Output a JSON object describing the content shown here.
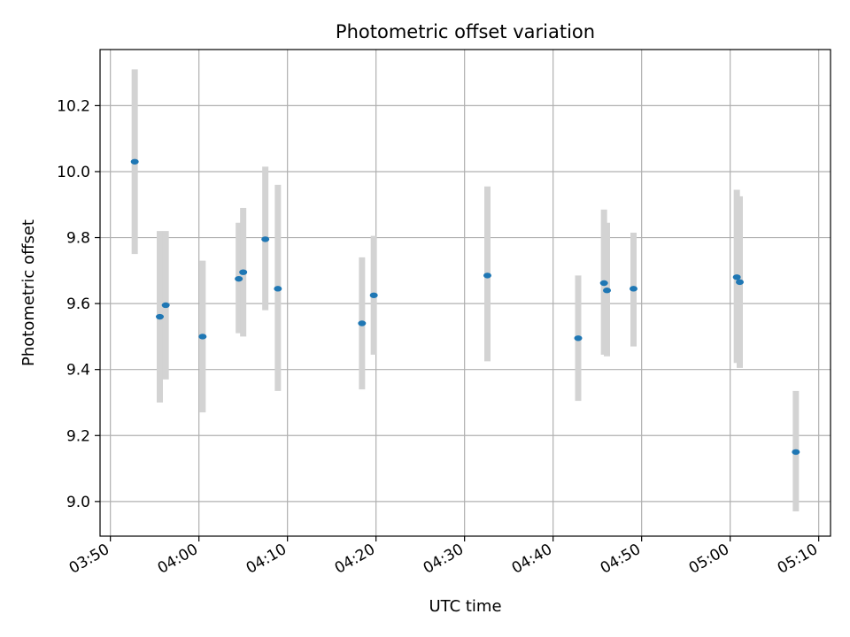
{
  "chart_data": {
    "type": "scatter",
    "title": "Photometric offset variation",
    "xlabel": "UTC time",
    "ylabel": "Photometric offset",
    "x_ticks": [
      "03:50",
      "04:00",
      "04:10",
      "04:20",
      "04:30",
      "04:40",
      "04:50",
      "05:00",
      "05:10"
    ],
    "y_ticks": [
      "9.0",
      "9.2",
      "9.4",
      "9.6",
      "9.8",
      "10.0",
      "10.2"
    ],
    "xlim": [
      "03:48:50",
      "05:11:20"
    ],
    "ylim": [
      8.895,
      10.37
    ],
    "grid": true,
    "colors": {
      "points": "#1f77b4",
      "errorbars": "#d3d3d3",
      "grid": "#b0b0b0"
    },
    "series": [
      {
        "points": [
          {
            "x": "03:52:45",
            "y": 10.03,
            "err_low": 9.75,
            "err_high": 10.31
          },
          {
            "x": "03:55:35",
            "y": 9.56,
            "err_low": 9.3,
            "err_high": 9.82
          },
          {
            "x": "03:56:15",
            "y": 9.595,
            "err_low": 9.37,
            "err_high": 9.82
          },
          {
            "x": "04:00:25",
            "y": 9.5,
            "err_low": 9.27,
            "err_high": 9.73
          },
          {
            "x": "04:04:30",
            "y": 9.675,
            "err_low": 9.51,
            "err_high": 9.845
          },
          {
            "x": "04:05:00",
            "y": 9.695,
            "err_low": 9.5,
            "err_high": 9.89
          },
          {
            "x": "04:07:30",
            "y": 9.795,
            "err_low": 9.58,
            "err_high": 10.015
          },
          {
            "x": "04:08:55",
            "y": 9.645,
            "err_low": 9.335,
            "err_high": 9.96
          },
          {
            "x": "04:18:25",
            "y": 9.54,
            "err_low": 9.34,
            "err_high": 9.74
          },
          {
            "x": "04:19:45",
            "y": 9.625,
            "err_low": 9.445,
            "err_high": 9.805
          },
          {
            "x": "04:32:35",
            "y": 9.685,
            "err_low": 9.425,
            "err_high": 9.955
          },
          {
            "x": "04:42:50",
            "y": 9.495,
            "err_low": 9.305,
            "err_high": 9.685
          },
          {
            "x": "04:45:45",
            "y": 9.662,
            "err_low": 9.445,
            "err_high": 9.885
          },
          {
            "x": "04:46:05",
            "y": 9.64,
            "err_low": 9.44,
            "err_high": 9.845
          },
          {
            "x": "04:49:05",
            "y": 9.645,
            "err_low": 9.47,
            "err_high": 9.815
          },
          {
            "x": "05:00:45",
            "y": 9.68,
            "err_low": 9.42,
            "err_high": 9.945
          },
          {
            "x": "05:01:05",
            "y": 9.665,
            "err_low": 9.405,
            "err_high": 9.925
          },
          {
            "x": "05:07:25",
            "y": 9.15,
            "err_low": 8.97,
            "err_high": 9.335
          }
        ]
      }
    ]
  }
}
